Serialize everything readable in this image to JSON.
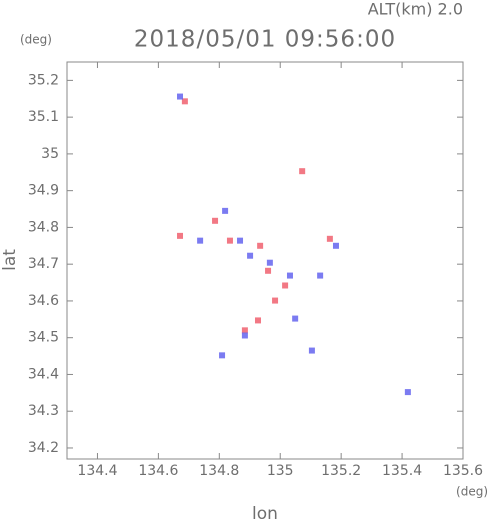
{
  "chart_data": {
    "type": "scatter",
    "title": "2018/05/01 09:56:00",
    "subtitle": "ALT(km) 2.0",
    "x_label": "lon",
    "y_label": "lat",
    "x_unit": "(deg)",
    "y_unit": "(deg)",
    "xlim": [
      134.3,
      135.6
    ],
    "ylim": [
      34.17,
      35.25
    ],
    "xticks": [
      134.4,
      134.6,
      134.8,
      135.0,
      135.2,
      135.4,
      135.6
    ],
    "yticks": [
      34.2,
      34.3,
      34.4,
      34.5,
      34.6,
      34.7,
      34.8,
      34.9,
      35.0,
      35.1,
      35.2
    ],
    "series": [
      {
        "color": "#f0606e",
        "x": [
          134.687,
          135.072,
          134.786,
          134.835,
          134.934,
          134.96,
          135.016,
          134.983,
          134.927,
          134.671,
          135.163,
          134.884
        ],
        "values": [
          35.143,
          34.953,
          34.818,
          34.764,
          34.75,
          34.682,
          34.642,
          34.601,
          34.547,
          34.777,
          34.769,
          34.52
        ]
      },
      {
        "color": "#6464ee",
        "x": [
          134.671,
          134.819,
          134.901,
          134.868,
          135.032,
          135.049,
          134.884,
          134.809,
          135.419,
          135.104,
          135.131,
          134.966,
          134.737,
          135.183
        ],
        "values": [
          35.156,
          34.845,
          34.723,
          34.764,
          34.669,
          34.552,
          34.506,
          34.452,
          34.352,
          34.465,
          34.669,
          34.704,
          34.764,
          34.75
        ]
      }
    ]
  }
}
